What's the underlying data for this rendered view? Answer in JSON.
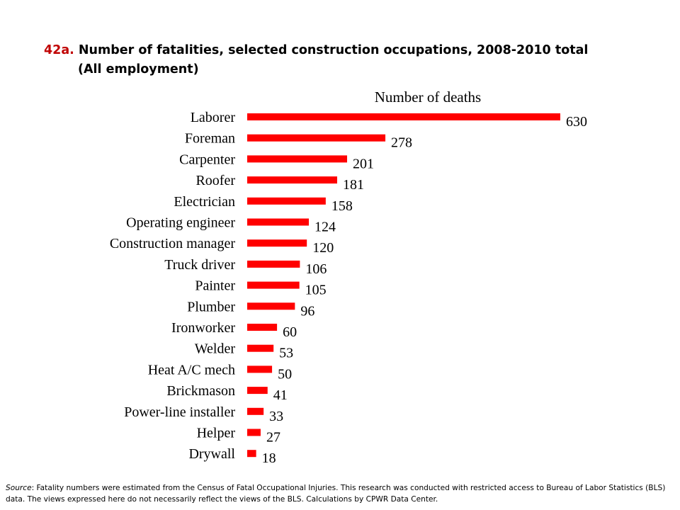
{
  "title": {
    "number": "42a.",
    "text": "Number of fatalities, selected construction occupations, 2008-2010 total",
    "line2": "(All employment)"
  },
  "chart_data": {
    "type": "bar",
    "orientation": "horizontal",
    "series_label": "Number of deaths",
    "categories": [
      "Laborer",
      "Foreman",
      "Carpenter",
      "Roofer",
      "Electrician",
      "Operating engineer",
      "Construction manager",
      "Truck driver",
      "Painter",
      "Plumber",
      "Ironworker",
      "Welder",
      "Heat A/C mech",
      "Brickmason",
      "Power-line installer",
      "Helper",
      "Drywall"
    ],
    "values": [
      630,
      278,
      201,
      181,
      158,
      124,
      120,
      106,
      105,
      96,
      60,
      53,
      50,
      41,
      33,
      27,
      18
    ],
    "xlim": [
      0,
      630
    ],
    "grid": false,
    "bar_color": "#ff0000"
  },
  "source": {
    "label": "Source",
    "text": ": Fatality numbers were estimated from the Census of Fatal Occupational Injuries. This research was conducted with restricted access to Bureau of Labor Statistics (BLS) data. The views expressed here do not necessarily reflect the views of the BLS. Calculations by CPWR Data Center."
  }
}
